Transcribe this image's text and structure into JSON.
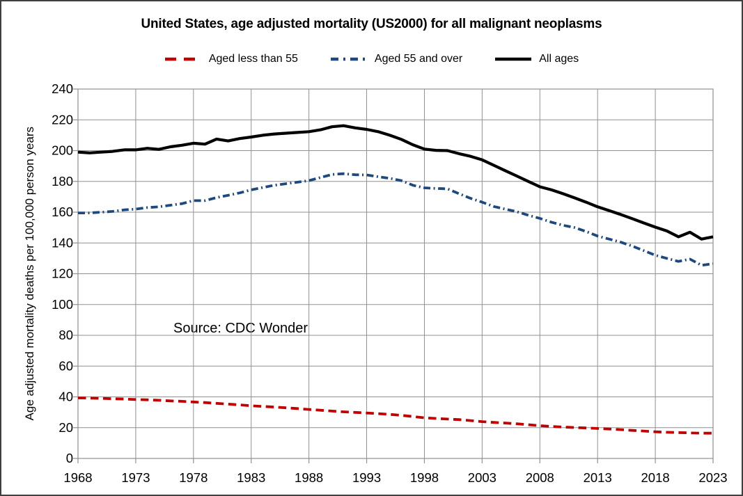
{
  "frame": {
    "background": "#ffffff",
    "border_color": "#3f3f3f"
  },
  "chart_data": {
    "type": "line",
    "title": "United States, age adjusted mortality (US2000) for all malignant neoplasms",
    "ylabel": "Age adjusted mortality deaths per 100,000 person years",
    "xlabel": "",
    "annotation": "Source: CDC Wonder",
    "legend_position": "top",
    "grid": true,
    "grid_color": "#909090",
    "axis_color": "#909090",
    "text_color": "#000000",
    "xlim": [
      1968,
      2023
    ],
    "ylim": [
      0,
      240
    ],
    "x_ticks": [
      1968,
      1973,
      1978,
      1983,
      1988,
      1993,
      1998,
      2003,
      2008,
      2013,
      2018,
      2023
    ],
    "y_ticks": [
      0,
      20,
      40,
      60,
      80,
      100,
      120,
      140,
      160,
      180,
      200,
      220,
      240
    ],
    "years": [
      1968,
      1969,
      1970,
      1971,
      1972,
      1973,
      1974,
      1975,
      1976,
      1977,
      1978,
      1979,
      1980,
      1981,
      1982,
      1983,
      1984,
      1985,
      1986,
      1987,
      1988,
      1989,
      1990,
      1991,
      1992,
      1993,
      1994,
      1995,
      1996,
      1997,
      1998,
      1999,
      2000,
      2001,
      2002,
      2003,
      2004,
      2005,
      2006,
      2007,
      2008,
      2009,
      2010,
      2011,
      2012,
      2013,
      2014,
      2015,
      2016,
      2017,
      2018,
      2019,
      2020,
      2021,
      2022,
      2023
    ],
    "series": [
      {
        "name": "Aged less than 55",
        "color": "#C00000",
        "style": "dashed",
        "values": [
          39.3,
          39.2,
          39,
          38.8,
          38.6,
          38.3,
          38.1,
          37.8,
          37.4,
          37.1,
          36.7,
          36.3,
          35.8,
          35.3,
          34.8,
          34.2,
          33.8,
          33.4,
          32.9,
          32.4,
          31.8,
          31.3,
          30.8,
          30.3,
          29.9,
          29.5,
          29.1,
          28.6,
          28,
          27.2,
          26.4,
          26,
          25.6,
          25.2,
          24.6,
          23.9,
          23.4,
          23,
          22.5,
          21.9,
          21.3,
          20.8,
          20.4,
          20.1,
          19.8,
          19.5,
          19.1,
          18.7,
          18.2,
          17.8,
          17.3,
          17,
          16.8,
          16.6,
          16.4,
          16.4
        ]
      },
      {
        "name": "Aged 55 and over",
        "color": "#1F497D",
        "style": "dash-dot",
        "values": [
          159.5,
          159.5,
          160,
          160.5,
          161.5,
          162,
          163,
          163.5,
          164.5,
          165.5,
          167.5,
          167.5,
          169.5,
          171,
          172.5,
          174.5,
          176,
          177.5,
          178.5,
          179.5,
          180.5,
          182.5,
          184.5,
          185,
          184.3,
          184.2,
          183,
          182,
          180.5,
          177.5,
          175.8,
          175.4,
          175.2,
          172,
          169,
          166.5,
          163.7,
          162,
          160.3,
          158,
          156,
          153.5,
          151.5,
          150,
          147.5,
          144.5,
          142.5,
          140.5,
          138,
          135,
          132,
          130,
          128,
          129.5,
          125.5,
          126.5
        ]
      },
      {
        "name": "All ages",
        "color": "#000000",
        "style": "solid",
        "values": [
          199,
          198.5,
          199,
          199.5,
          200.5,
          200.5,
          201.5,
          200.8,
          202.5,
          203.5,
          204.8,
          204.2,
          207.5,
          206.3,
          207.8,
          208.8,
          210,
          210.8,
          211.3,
          211.8,
          212.3,
          213.5,
          215.5,
          216.2,
          214.8,
          213.8,
          212.3,
          210,
          207.3,
          203.8,
          201,
          200.2,
          200,
          198,
          196.3,
          194,
          190.5,
          187,
          183.5,
          180,
          176.5,
          174.5,
          172,
          169.3,
          166.5,
          163.5,
          161,
          158.5,
          155.8,
          153,
          150.3,
          147.8,
          144,
          147,
          142.5,
          144
        ]
      }
    ]
  }
}
